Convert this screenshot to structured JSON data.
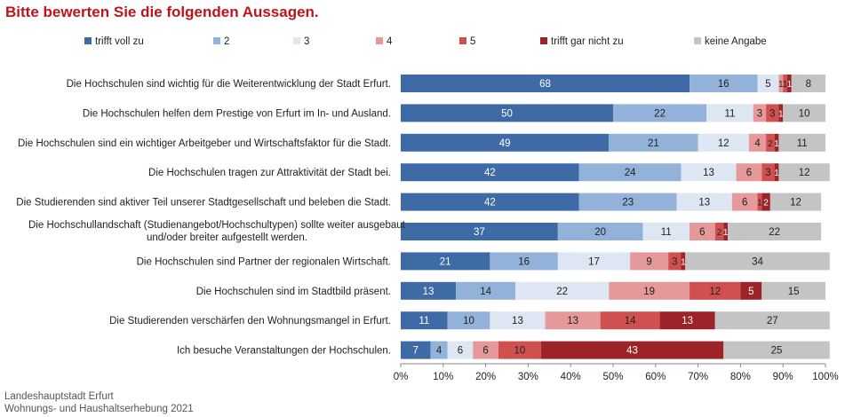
{
  "title": "Bitte bewerten Sie die folgenden Aussagen.",
  "footer": {
    "line1": "Landeshauptstadt Erfurt",
    "line2": "Wohnungs- und Haushaltserhebung 2021"
  },
  "chart_data": {
    "type": "bar",
    "orientation": "horizontal",
    "stacked": true,
    "xlim": [
      0,
      100
    ],
    "x_ticks": [
      "0%",
      "10%",
      "20%",
      "30%",
      "40%",
      "50%",
      "60%",
      "70%",
      "80%",
      "90%",
      "100%"
    ],
    "legend_position": "top",
    "categories": [
      [
        "Die Hochschulen sind wichtig für die Weiterentwicklung der Stadt Erfurt."
      ],
      [
        "Die Hochschulen helfen dem Prestige von Erfurt im In- und Ausland."
      ],
      [
        "Die Hochschulen sind ein wichtiger Arbeitgeber und Wirtschaftsfaktor für die Stadt."
      ],
      [
        "Die Hochschulen tragen zur Attraktivität der Stadt bei."
      ],
      [
        "Die Studierenden sind aktiver Teil unserer Stadtgesellschaft und beleben die Stadt."
      ],
      [
        "Die Hochschullandschaft (Studienangebot/Hochschultypen) sollte weiter ausgebaut",
        "und/oder breiter aufgestellt werden."
      ],
      [
        "Die Hochschulen sind Partner der regionalen Wirtschaft."
      ],
      [
        "Die Hochschulen sind im Stadtbild präsent."
      ],
      [
        "Die Studierenden verschärfen den Wohnungsmangel in Erfurt."
      ],
      [
        "Ich besuche Veranstaltungen der Hochschulen."
      ]
    ],
    "series": [
      {
        "name": "trifft voll zu",
        "color": "#3e6ba6",
        "label_color": "#ffffff",
        "values": [
          68,
          50,
          49,
          42,
          42,
          37,
          21,
          13,
          11,
          7
        ]
      },
      {
        "name": "2",
        "color": "#93b2d9",
        "label_color": "#222222",
        "values": [
          16,
          22,
          21,
          24,
          23,
          20,
          16,
          14,
          10,
          4
        ]
      },
      {
        "name": "3",
        "color": "#dde6f2",
        "label_color": "#222222",
        "values": [
          5,
          11,
          12,
          13,
          13,
          11,
          17,
          22,
          13,
          6
        ]
      },
      {
        "name": "4",
        "color": "#e5999a",
        "label_color": "#222222",
        "values": [
          1,
          3,
          4,
          6,
          6,
          6,
          9,
          19,
          13,
          6
        ]
      },
      {
        "name": "5",
        "color": "#d05050",
        "label_color": "#222222",
        "values": [
          1,
          3,
          2,
          3,
          1,
          2,
          3,
          12,
          14,
          10
        ]
      },
      {
        "name": "trifft gar nicht zu",
        "color": "#9c2429",
        "label_color": "#ffffff",
        "values": [
          1,
          1,
          1,
          1,
          2,
          1,
          1,
          5,
          13,
          43
        ]
      },
      {
        "name": "keine Angabe",
        "color": "#c4c4c4",
        "label_color": "#222222",
        "values": [
          8,
          10,
          11,
          12,
          12,
          22,
          34,
          15,
          27,
          25
        ]
      }
    ]
  }
}
